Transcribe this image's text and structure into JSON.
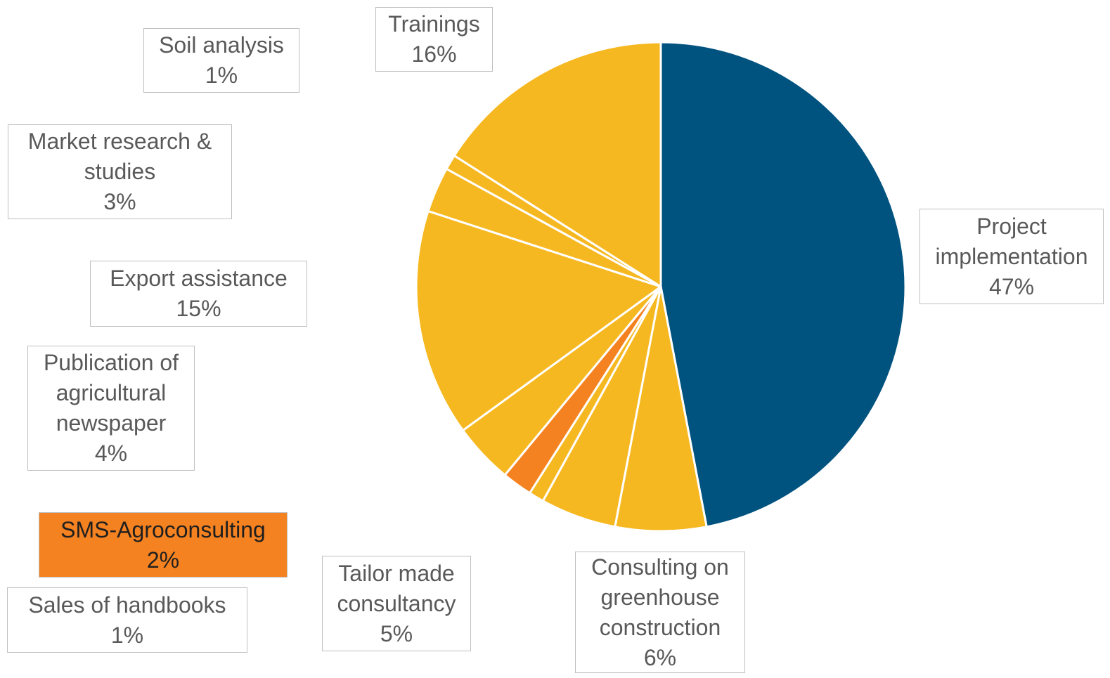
{
  "chart_data": {
    "type": "pie",
    "categories": [
      "Project implementation",
      "Consulting on greenhouse construction",
      "Tailor made consultancy",
      "Sales of handbooks",
      "SMS-Agroconsulting",
      "Publication of agricultural newspaper",
      "Export assistance",
      "Market research & studies",
      "Soil analysis",
      "Trainings"
    ],
    "values": [
      47,
      6,
      5,
      1,
      2,
      4,
      15,
      3,
      1,
      16
    ],
    "value_labels": [
      "47%",
      "6%",
      "5%",
      "1%",
      "2%",
      "4%",
      "15%",
      "3%",
      "1%",
      "16%"
    ],
    "colors": [
      "#00527f",
      "#f6b820",
      "#f6b820",
      "#f6b820",
      "#f58220",
      "#f6b820",
      "#f6b820",
      "#f6b820",
      "#f6b820",
      "#f6b820"
    ]
  }
}
